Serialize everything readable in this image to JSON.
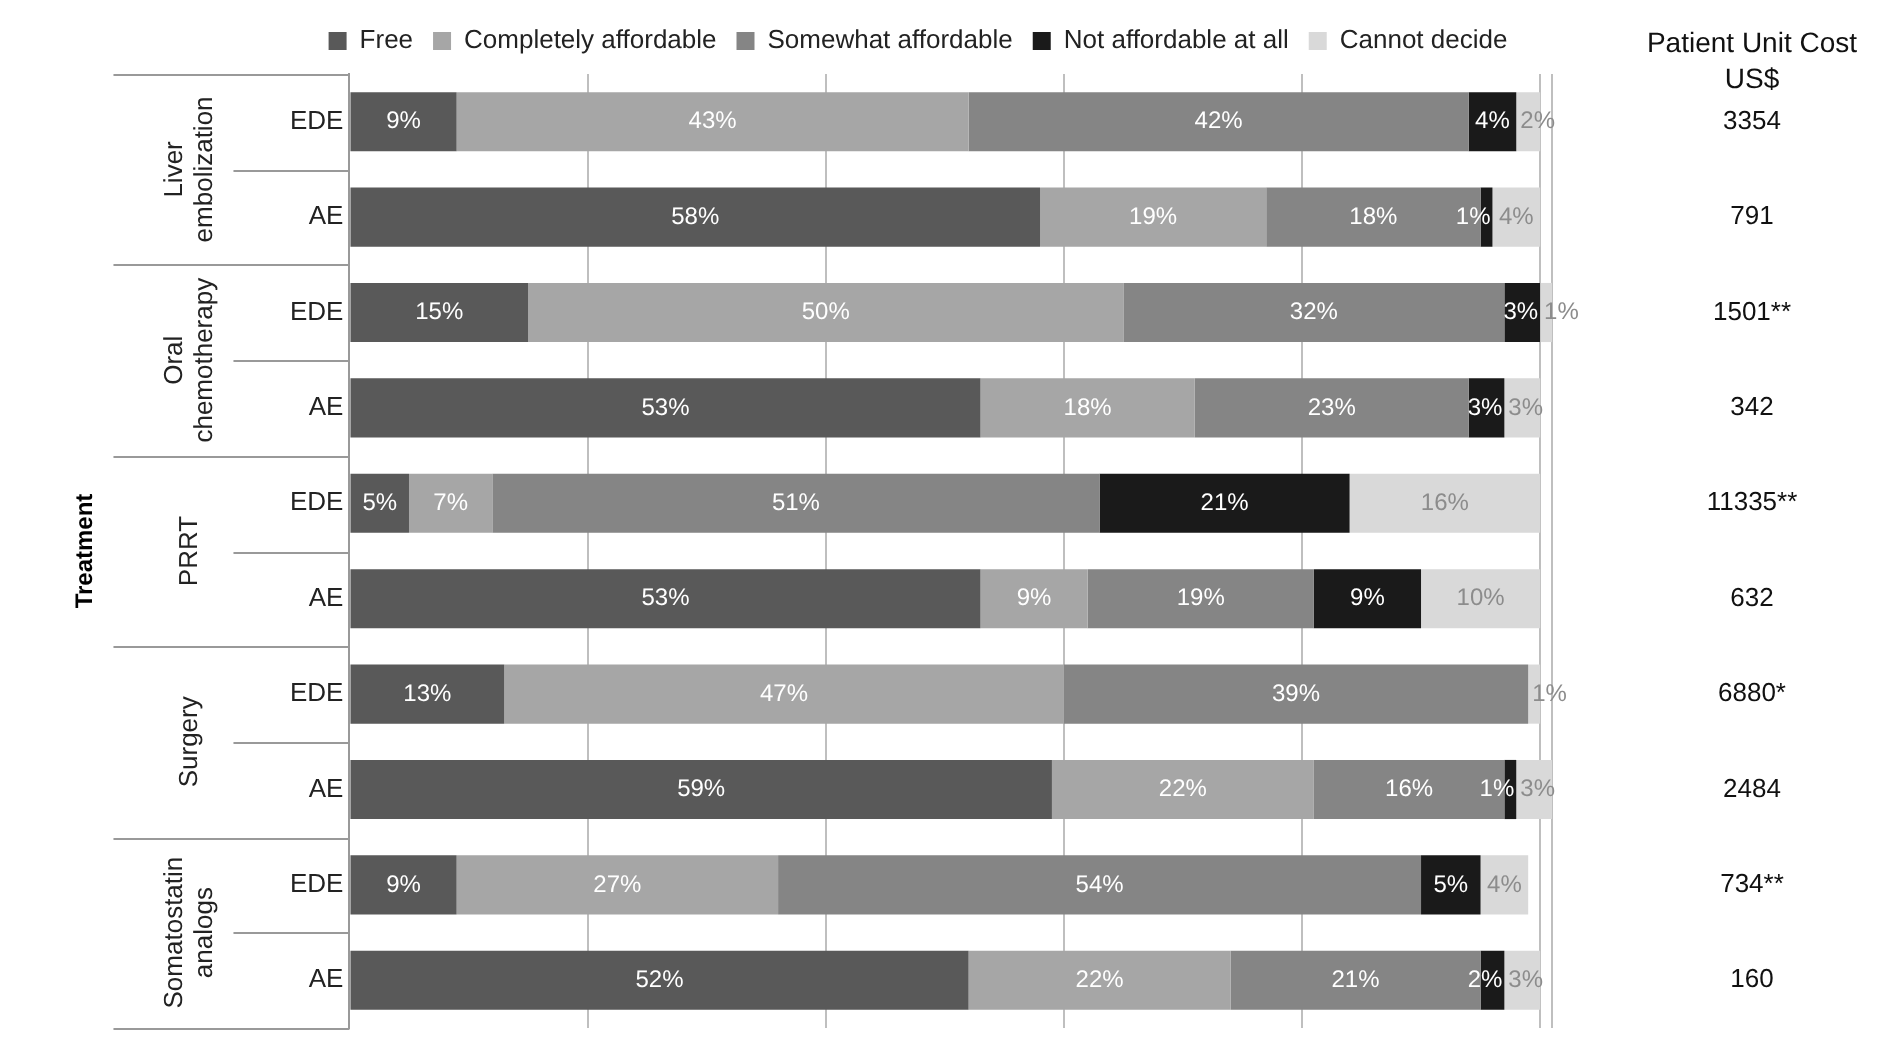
{
  "chart_data": {
    "type": "bar",
    "orientation": "horizontal",
    "stacked": true,
    "categories": [
      "EDE",
      "AE",
      "EDE",
      "AE",
      "EDE",
      "AE",
      "EDE",
      "AE",
      "EDE",
      "AE"
    ],
    "series": [
      {
        "name": "Free",
        "color": "#595959",
        "values": [
          9,
          58,
          15,
          53,
          5,
          53,
          13,
          59,
          9,
          52
        ],
        "value_labels": [
          "9%",
          "58%",
          "15%",
          "53%",
          "5%",
          "53%",
          "13%",
          "59%",
          "9%",
          "52%"
        ]
      },
      {
        "name": "Completely affordable",
        "color": "#a6a6a6",
        "values": [
          43,
          19,
          50,
          18,
          7,
          9,
          47,
          22,
          27,
          22
        ],
        "value_labels": [
          "43%",
          "19%",
          "50%",
          "18%",
          "7%",
          "9%",
          "47%",
          "22%",
          "27%",
          "22%"
        ]
      },
      {
        "name": "Somewhat affordable",
        "color": "#858585",
        "values": [
          42,
          18,
          32,
          23,
          51,
          19,
          39,
          16,
          54,
          21
        ],
        "value_labels": [
          "42%",
          "18%",
          "32%",
          "23%",
          "51%",
          "19%",
          "39%",
          "16%",
          "54%",
          "21%"
        ]
      },
      {
        "name": "Not affordable at all",
        "color": "#1a1a1a",
        "values": [
          4,
          1,
          3,
          3,
          21,
          9,
          null,
          1,
          5,
          2
        ],
        "value_labels": [
          "4%",
          "1%",
          "3%",
          "3%",
          "21%",
          "9%",
          null,
          "1%",
          "5%",
          "2%"
        ]
      },
      {
        "name": "Cannot decide",
        "color": "#d9d9d9",
        "values": [
          2,
          4,
          1,
          3,
          16,
          10,
          1,
          3,
          4,
          3
        ],
        "value_labels": [
          "2%",
          "4%",
          "1%",
          "3%",
          "16%",
          "10%",
          "1%",
          "3%",
          "4%",
          "3%"
        ]
      }
    ],
    "tick_labels": "y",
    "grid": "x",
    "legend": "top",
    "annotations": [
      "Treatment",
      "Liver embolization",
      "Oral chemotherapy",
      "PRRT",
      "Surgery",
      "Somatostatin analogs",
      "Patient Unit Cost US$",
      "3354",
      "791",
      "1501**",
      "342",
      "11335**",
      "632",
      "6880*",
      "2484",
      "734**",
      "160"
    ]
  }
}
